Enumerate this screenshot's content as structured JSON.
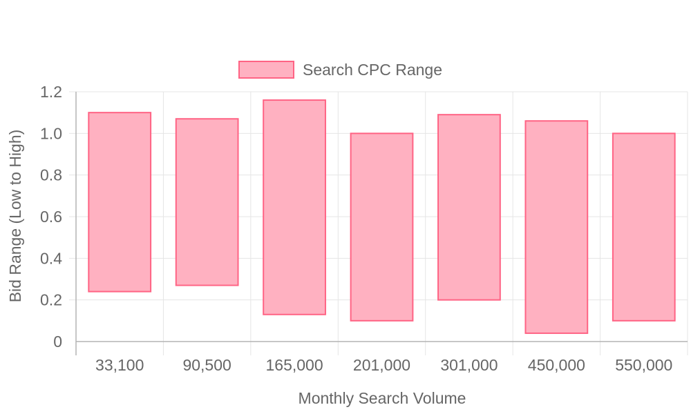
{
  "chart_data": {
    "type": "bar",
    "subtype": "floating-range",
    "legend": {
      "position": "top",
      "label": "Search CPC Range"
    },
    "xlabel": "Monthly Search Volume",
    "ylabel": "Bid Range (Low to High)",
    "categories": [
      "33,100",
      "90,500",
      "165,000",
      "201,000",
      "301,000",
      "450,000",
      "550,000"
    ],
    "series": [
      {
        "name": "Search CPC Range",
        "low": [
          0.24,
          0.27,
          0.13,
          0.1,
          0.2,
          0.04,
          0.1
        ],
        "high": [
          1.1,
          1.07,
          1.16,
          1.0,
          1.09,
          1.06,
          1.0
        ]
      }
    ],
    "ylim": [
      0,
      1.2
    ],
    "yticks": [
      "0",
      "0.2",
      "0.4",
      "0.6",
      "0.8",
      "1.0",
      "1.2"
    ],
    "grid": true,
    "colors": {
      "fill": "#ffb1c1",
      "border": "#ff6384",
      "grid": "#e5e5e5",
      "axis": "#b3b3b3",
      "text": "#666666"
    }
  }
}
